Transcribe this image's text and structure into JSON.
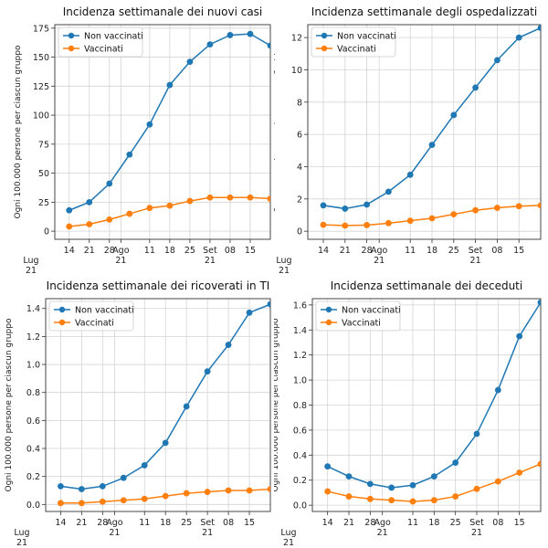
{
  "chart_data": [
    {
      "type": "line",
      "title": "Incidenza settimanale dei nuovi casi",
      "ylabel": "Ogni 100.000 persone per ciascun gruppo",
      "x_dates": [
        "2021-07-14",
        "2021-07-21",
        "2021-07-28",
        "2021-08-04",
        "2021-08-11",
        "2021-08-18",
        "2021-08-25",
        "2021-09-01",
        "2021-09-08",
        "2021-09-15",
        "2021-09-22"
      ],
      "x_ticks": [
        {
          "date": "2021-07-14",
          "label": "14"
        },
        {
          "date": "2021-07-21",
          "label": "21"
        },
        {
          "date": "2021-07-28",
          "label": "28"
        },
        {
          "date": "2021-08-01",
          "label": "Ago",
          "label2": "21"
        },
        {
          "date": "2021-08-11",
          "label": "11"
        },
        {
          "date": "2021-08-18",
          "label": "18"
        },
        {
          "date": "2021-08-25",
          "label": "25"
        },
        {
          "date": "2021-09-01",
          "label": "Set",
          "label2": "21"
        },
        {
          "date": "2021-09-08",
          "label": "08"
        },
        {
          "date": "2021-09-15",
          "label": "15"
        }
      ],
      "xlim": [
        "2021-07-09",
        "2021-09-22"
      ],
      "ylim": [
        -7,
        178
      ],
      "yticks": [
        0,
        25,
        50,
        75,
        100,
        125,
        150,
        175
      ],
      "series": [
        {
          "name": "Non vaccinati",
          "color": "#1f77b4",
          "values": [
            18,
            25,
            41,
            66,
            92,
            126,
            146,
            161,
            169,
            170,
            160
          ]
        },
        {
          "name": "Vaccinati",
          "color": "#ff7f0e",
          "values": [
            4,
            6,
            10,
            15,
            20,
            22,
            26,
            29,
            29,
            29,
            28
          ]
        }
      ],
      "grid": true,
      "legend": "top-left"
    },
    {
      "type": "line",
      "title": "Incidenza settimanale degli ospedalizzati",
      "ylabel": "Ogni 100.000 persone per ciascun gruppo",
      "x_dates": [
        "2021-07-14",
        "2021-07-21",
        "2021-07-28",
        "2021-08-04",
        "2021-08-11",
        "2021-08-18",
        "2021-08-25",
        "2021-09-01",
        "2021-09-08",
        "2021-09-15",
        "2021-09-22"
      ],
      "x_ticks": [
        {
          "date": "2021-07-14",
          "label": "14"
        },
        {
          "date": "2021-07-21",
          "label": "21"
        },
        {
          "date": "2021-07-28",
          "label": "28"
        },
        {
          "date": "2021-08-01",
          "label": "Ago",
          "label2": "21"
        },
        {
          "date": "2021-08-11",
          "label": "11"
        },
        {
          "date": "2021-08-18",
          "label": "18"
        },
        {
          "date": "2021-08-25",
          "label": "25"
        },
        {
          "date": "2021-09-01",
          "label": "Set",
          "label2": "21"
        },
        {
          "date": "2021-09-08",
          "label": "08"
        },
        {
          "date": "2021-09-15",
          "label": "15"
        }
      ],
      "xlim": [
        "2021-07-09",
        "2021-09-22"
      ],
      "ylim": [
        -0.5,
        12.8
      ],
      "yticks": [
        0,
        2,
        4,
        6,
        8,
        10,
        12
      ],
      "series": [
        {
          "name": "Non vaccinati",
          "color": "#1f77b4",
          "values": [
            1.6,
            1.4,
            1.65,
            2.45,
            3.5,
            5.35,
            7.2,
            8.9,
            10.6,
            12.0,
            12.6
          ]
        },
        {
          "name": "Vaccinati",
          "color": "#ff7f0e",
          "values": [
            0.4,
            0.35,
            0.38,
            0.5,
            0.65,
            0.8,
            1.05,
            1.3,
            1.45,
            1.55,
            1.6
          ]
        }
      ],
      "grid": true,
      "legend": "top-left"
    },
    {
      "type": "line",
      "title": "Incidenza settimanale dei ricoverati in TI",
      "ylabel": "Ogni 100.000 persone per ciascun gruppo",
      "x_dates": [
        "2021-07-14",
        "2021-07-21",
        "2021-07-28",
        "2021-08-04",
        "2021-08-11",
        "2021-08-18",
        "2021-08-25",
        "2021-09-01",
        "2021-09-08",
        "2021-09-15",
        "2021-09-22"
      ],
      "x_ticks": [
        {
          "date": "2021-07-14",
          "label": "14"
        },
        {
          "date": "2021-07-21",
          "label": "21"
        },
        {
          "date": "2021-07-28",
          "label": "28"
        },
        {
          "date": "2021-08-01",
          "label": "Ago",
          "label2": "21"
        },
        {
          "date": "2021-08-11",
          "label": "11"
        },
        {
          "date": "2021-08-18",
          "label": "18"
        },
        {
          "date": "2021-08-25",
          "label": "25"
        },
        {
          "date": "2021-09-01",
          "label": "Set",
          "label2": "21"
        },
        {
          "date": "2021-09-08",
          "label": "08"
        },
        {
          "date": "2021-09-15",
          "label": "15"
        }
      ],
      "xlim": [
        "2021-07-09",
        "2021-09-22"
      ],
      "ylim": [
        -0.05,
        1.47
      ],
      "yticks": [
        0.0,
        0.2,
        0.4,
        0.6,
        0.8,
        1.0,
        1.2,
        1.4
      ],
      "series": [
        {
          "name": "Non vaccinati",
          "color": "#1f77b4",
          "values": [
            0.13,
            0.11,
            0.13,
            0.19,
            0.28,
            0.44,
            0.7,
            0.95,
            1.14,
            1.37,
            1.43
          ]
        },
        {
          "name": "Vaccinati",
          "color": "#ff7f0e",
          "values": [
            0.01,
            0.01,
            0.02,
            0.03,
            0.04,
            0.06,
            0.08,
            0.09,
            0.1,
            0.1,
            0.11
          ]
        }
      ],
      "grid": true,
      "legend": "top-left"
    },
    {
      "type": "line",
      "title": "Incidenza settimanale dei deceduti",
      "ylabel": "Ogni 100.000 persone per ciascun gruppo",
      "x_dates": [
        "2021-07-14",
        "2021-07-21",
        "2021-07-28",
        "2021-08-04",
        "2021-08-11",
        "2021-08-18",
        "2021-08-25",
        "2021-09-01",
        "2021-09-08",
        "2021-09-15",
        "2021-09-22"
      ],
      "x_ticks": [
        {
          "date": "2021-07-14",
          "label": "14"
        },
        {
          "date": "2021-07-21",
          "label": "21"
        },
        {
          "date": "2021-07-28",
          "label": "28"
        },
        {
          "date": "2021-08-01",
          "label": "Ago",
          "label2": "21"
        },
        {
          "date": "2021-08-11",
          "label": "11"
        },
        {
          "date": "2021-08-18",
          "label": "18"
        },
        {
          "date": "2021-08-25",
          "label": "25"
        },
        {
          "date": "2021-09-01",
          "label": "Set",
          "label2": "21"
        },
        {
          "date": "2021-09-08",
          "label": "08"
        },
        {
          "date": "2021-09-15",
          "label": "15"
        }
      ],
      "xlim": [
        "2021-07-09",
        "2021-09-22"
      ],
      "ylim": [
        -0.05,
        1.65
      ],
      "yticks": [
        0.0,
        0.2,
        0.4,
        0.6,
        0.8,
        1.0,
        1.2,
        1.4,
        1.6
      ],
      "series": [
        {
          "name": "Non vaccinati",
          "color": "#1f77b4",
          "values": [
            0.31,
            0.23,
            0.17,
            0.14,
            0.16,
            0.23,
            0.34,
            0.57,
            0.92,
            1.35,
            1.62
          ]
        },
        {
          "name": "Vaccinati",
          "color": "#ff7f0e",
          "values": [
            0.11,
            0.07,
            0.05,
            0.04,
            0.03,
            0.04,
            0.07,
            0.13,
            0.19,
            0.26,
            0.33
          ]
        }
      ],
      "grid": true,
      "legend": "top-left"
    }
  ],
  "x_corner_label": {
    "line1": "Lug",
    "line2": "21"
  }
}
